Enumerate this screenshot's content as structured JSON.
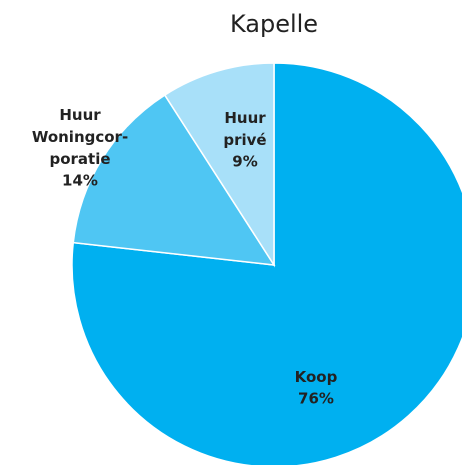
{
  "chart_data": {
    "type": "pie",
    "title": "Kapelle",
    "categories": [
      "Koop",
      "Huur Woningcor-poratie",
      "Huur privé"
    ],
    "values": [
      76,
      14,
      9
    ],
    "value_labels": [
      "76%",
      "14%",
      "9%"
    ],
    "colors": [
      "#00b0f0",
      "#4fc6f3",
      "#a8e0f9"
    ]
  }
}
